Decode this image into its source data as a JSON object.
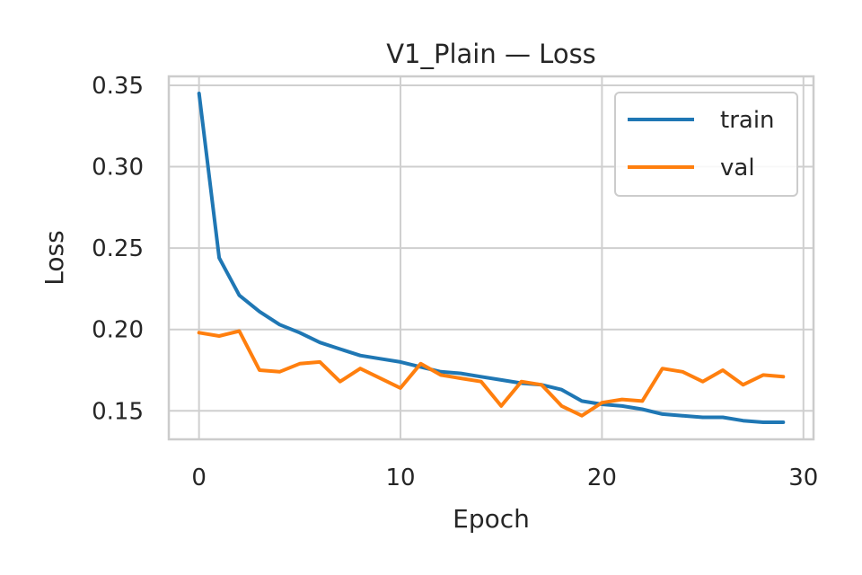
{
  "chart_data": {
    "type": "line",
    "title": "V1_Plain — Loss",
    "xlabel": "Epoch",
    "ylabel": "Loss",
    "xlim": [
      -1.5,
      30.5
    ],
    "ylim": [
      0.1325,
      0.3555
    ],
    "xticks": [
      0,
      10,
      20,
      30
    ],
    "xtick_labels": [
      "0",
      "10",
      "20",
      "30"
    ],
    "yticks": [
      0.15,
      0.2,
      0.25,
      0.3,
      0.35
    ],
    "ytick_labels": [
      "0.15",
      "0.20",
      "0.25",
      "0.30",
      "0.35"
    ],
    "grid": true,
    "legend_position": "top-right",
    "x": [
      0,
      1,
      2,
      3,
      4,
      5,
      6,
      7,
      8,
      9,
      10,
      11,
      12,
      13,
      14,
      15,
      16,
      17,
      18,
      19,
      20,
      21,
      22,
      23,
      24,
      25,
      26,
      27,
      28,
      29
    ],
    "series": [
      {
        "name": "train",
        "color": "#1f77b4",
        "values": [
          0.345,
          0.244,
          0.221,
          0.211,
          0.203,
          0.198,
          0.192,
          0.188,
          0.184,
          0.182,
          0.18,
          0.177,
          0.174,
          0.173,
          0.171,
          0.169,
          0.167,
          0.166,
          0.163,
          0.156,
          0.154,
          0.153,
          0.151,
          0.148,
          0.147,
          0.146,
          0.146,
          0.144,
          0.143,
          0.143
        ]
      },
      {
        "name": "val",
        "color": "#ff7f0e",
        "values": [
          0.198,
          0.196,
          0.199,
          0.175,
          0.174,
          0.179,
          0.18,
          0.168,
          0.176,
          0.17,
          0.164,
          0.179,
          0.172,
          0.17,
          0.168,
          0.153,
          0.168,
          0.166,
          0.153,
          0.147,
          0.155,
          0.157,
          0.156,
          0.176,
          0.174,
          0.168,
          0.175,
          0.166,
          0.172,
          0.171
        ]
      }
    ]
  }
}
